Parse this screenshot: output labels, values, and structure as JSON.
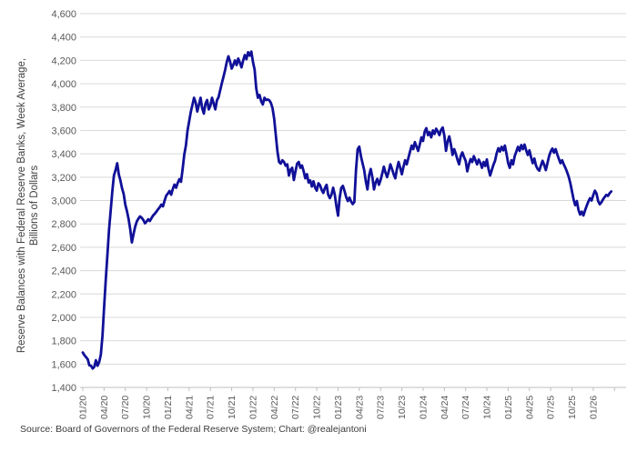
{
  "chart": {
    "y_axis_title_line1": "Reserve Balances with Federal Reserve Banks, Week Average,",
    "y_axis_title_line2": "Billions of Dollars",
    "source": "Source: Board of Governors of the Federal Reserve System; Chart: @realejantoni"
  },
  "chart_data": {
    "type": "line",
    "title": "",
    "xlabel": "",
    "ylabel": "Reserve Balances with Federal Reserve Banks, Week Average, Billions of Dollars",
    "ylim": [
      1400,
      4600
    ],
    "y_tick_step": 200,
    "grid": true,
    "legend": "none",
    "line_color": "#101098",
    "grid_color": "#d9d9d9",
    "axis_color": "#bfbfbf",
    "y_tick_labels": [
      "1,400",
      "1,600",
      "1,800",
      "2,000",
      "2,200",
      "2,400",
      "2,600",
      "2,800",
      "3,000",
      "3,200",
      "3,400",
      "3,600",
      "3,800",
      "4,000",
      "4,200",
      "4,400",
      "4,600"
    ],
    "x_tick_labels": [
      "01/20",
      "04/20",
      "07/20",
      "10/20",
      "01/21",
      "04/21",
      "07/21",
      "10/21",
      "01/22",
      "04/22",
      "07/22",
      "10/22",
      "01/23",
      "04/23",
      "07/23",
      "10/23",
      "01/24",
      "04/24",
      "07/24",
      "10/24",
      "01/25",
      "04/25",
      "07/25",
      "10/25",
      "01/26"
    ],
    "series": [
      {
        "name": "Reserve Balances with Federal Reserve Banks (week average, $B)",
        "start": "01/20",
        "interval": "weekly",
        "values": [
          1699,
          1676,
          1659,
          1641,
          1589,
          1585,
          1562,
          1576,
          1633,
          1585,
          1617,
          1680,
          1840,
          2086,
          2319,
          2532,
          2748,
          2911,
          3076,
          3215,
          3260,
          3319,
          3222,
          3173,
          3105,
          3057,
          2965,
          2910,
          2842,
          2755,
          2641,
          2711,
          2775,
          2820,
          2845,
          2864,
          2852,
          2833,
          2805,
          2820,
          2840,
          2825,
          2850,
          2872,
          2887,
          2905,
          2925,
          2942,
          2965,
          2950,
          3000,
          3043,
          3060,
          3082,
          3050,
          3100,
          3136,
          3110,
          3150,
          3183,
          3160,
          3270,
          3393,
          3471,
          3600,
          3680,
          3760,
          3820,
          3880,
          3840,
          3762,
          3820,
          3880,
          3790,
          3744,
          3830,
          3860,
          3780,
          3812,
          3880,
          3830,
          3780,
          3858,
          3885,
          3945,
          4005,
          4060,
          4118,
          4185,
          4235,
          4190,
          4130,
          4162,
          4200,
          4160,
          4215,
          4180,
          4140,
          4200,
          4245,
          4210,
          4270,
          4240,
          4275,
          4186,
          4120,
          3960,
          3880,
          3905,
          3850,
          3822,
          3880,
          3860,
          3865,
          3858,
          3836,
          3790,
          3700,
          3560,
          3420,
          3330,
          3316,
          3345,
          3330,
          3298,
          3310,
          3214,
          3265,
          3280,
          3175,
          3250,
          3315,
          3330,
          3280,
          3300,
          3250,
          3190,
          3226,
          3155,
          3172,
          3120,
          3165,
          3110,
          3085,
          3148,
          3130,
          3090,
          3065,
          3108,
          3135,
          3048,
          3020,
          3052,
          3110,
          3050,
          2950,
          2871,
          3020,
          3108,
          3125,
          3082,
          3030,
          2995,
          3025,
          2992,
          2970,
          2988,
          3260,
          3438,
          3462,
          3380,
          3320,
          3260,
          3165,
          3095,
          3215,
          3270,
          3200,
          3095,
          3155,
          3185,
          3135,
          3175,
          3230,
          3290,
          3240,
          3200,
          3250,
          3310,
          3270,
          3225,
          3190,
          3270,
          3330,
          3280,
          3225,
          3290,
          3345,
          3310,
          3365,
          3420,
          3470,
          3440,
          3500,
          3462,
          3425,
          3480,
          3540,
          3510,
          3590,
          3620,
          3560,
          3585,
          3540,
          3600,
          3570,
          3615,
          3590,
          3560,
          3605,
          3625,
          3555,
          3425,
          3505,
          3550,
          3480,
          3390,
          3440,
          3400,
          3350,
          3310,
          3380,
          3412,
          3372,
          3340,
          3250,
          3310,
          3355,
          3330,
          3380,
          3345,
          3310,
          3350,
          3322,
          3280,
          3330,
          3296,
          3352,
          3270,
          3215,
          3260,
          3305,
          3340,
          3405,
          3448,
          3420,
          3460,
          3430,
          3470,
          3400,
          3320,
          3280,
          3345,
          3310,
          3380,
          3420,
          3460,
          3425,
          3475,
          3440,
          3480,
          3430,
          3390,
          3430,
          3370,
          3320,
          3360,
          3300,
          3270,
          3255,
          3300,
          3340,
          3305,
          3260,
          3320,
          3380,
          3420,
          3445,
          3410,
          3440,
          3395,
          3355,
          3320,
          3345,
          3310,
          3280,
          3245,
          3205,
          3150,
          3080,
          3010,
          2960,
          2995,
          2920,
          2880,
          2905,
          2872,
          2915,
          2955,
          2990,
          3020,
          3000,
          3045,
          3084,
          3060,
          2995,
          2968,
          2985,
          3010,
          3030,
          3048,
          3040,
          3062,
          3078
        ]
      }
    ]
  }
}
